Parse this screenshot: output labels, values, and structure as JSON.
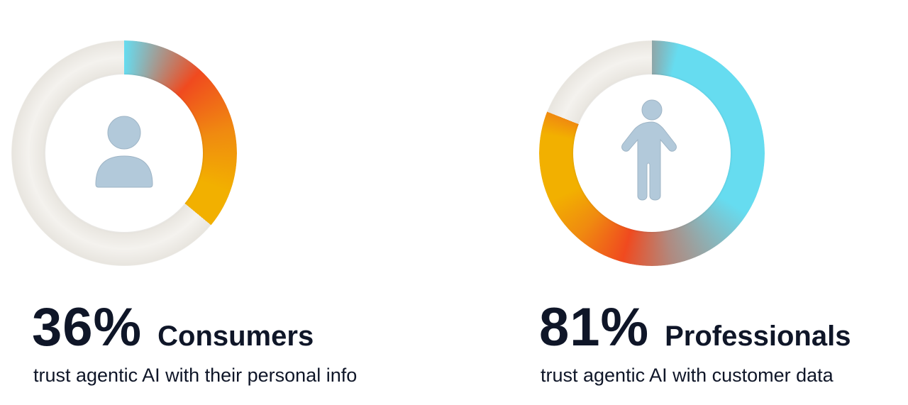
{
  "chart_data": [
    {
      "type": "pie",
      "variant": "donut",
      "value_percent": 36,
      "value_label": "36%",
      "title": "Consumers",
      "subtitle": "trust agentic AI with their personal info",
      "icon": "person-bust-icon",
      "colors": {
        "fill_gradient": [
          "#66dcf0",
          "#f04a1f",
          "#f08a10",
          "#f2b000"
        ],
        "track": "#ece9e3"
      }
    },
    {
      "type": "pie",
      "variant": "donut",
      "value_percent": 81,
      "value_label": "81%",
      "title": "Professionals",
      "subtitle": "trust agentic AI with customer data",
      "icon": "person-standing-icon",
      "colors": {
        "fill_gradient": [
          "#66dcf0",
          "#f04a1f",
          "#f08a10",
          "#f2b000"
        ],
        "track": "#ece9e3"
      }
    }
  ]
}
